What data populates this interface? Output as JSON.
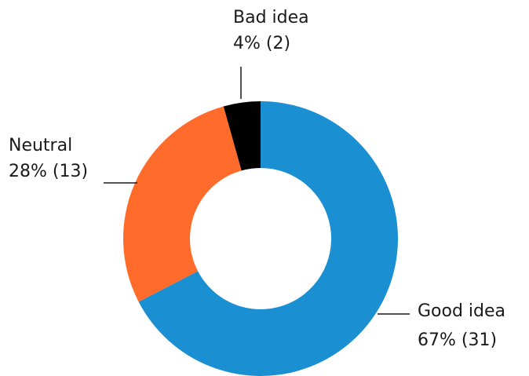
{
  "chart_data": {
    "type": "pie",
    "donut": true,
    "slices": [
      {
        "label": "Good idea",
        "value": 31,
        "percent": "67%",
        "color": "#1a8fd1"
      },
      {
        "label": "Neutral",
        "value": 13,
        "percent": "28%",
        "color": "#ff6b2b"
      },
      {
        "label": "Bad idea",
        "value": 2,
        "percent": "4%",
        "color": "#000000"
      }
    ]
  },
  "labels": [
    {
      "name": "Bad idea",
      "detail": "4% (2)"
    },
    {
      "name": "Neutral",
      "detail": "28% (13)"
    },
    {
      "name": "Good idea",
      "detail": "67% (31)"
    }
  ]
}
